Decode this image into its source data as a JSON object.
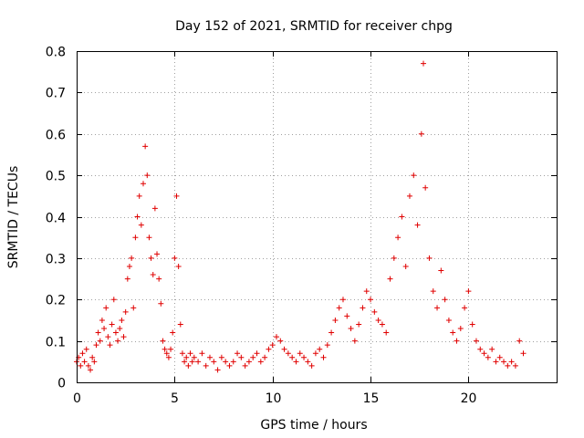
{
  "chart_data": {
    "type": "scatter",
    "title": "Day 152 of 2021, SRMTID for receiver chpg",
    "xlabel": "GPS time / hours",
    "ylabel": "SRMTID / TECUs",
    "xlim": [
      0,
      24.5
    ],
    "ylim": [
      0,
      0.8
    ],
    "xticks": [
      0,
      5,
      10,
      15,
      20
    ],
    "yticks": [
      0,
      0.1,
      0.2,
      0.3,
      0.4,
      0.5,
      0.6,
      0.7,
      0.8
    ],
    "grid": true,
    "marker": "plus",
    "color": "#e00000",
    "series": [
      {
        "name": "SRMTID",
        "x": [
          0.0,
          0.1,
          0.2,
          0.3,
          0.4,
          0.5,
          0.6,
          0.7,
          0.8,
          0.9,
          1.0,
          1.1,
          1.2,
          1.3,
          1.4,
          1.5,
          1.6,
          1.7,
          1.8,
          1.9,
          2.0,
          2.1,
          2.2,
          2.3,
          2.4,
          2.5,
          2.6,
          2.7,
          2.8,
          2.9,
          3.0,
          3.1,
          3.2,
          3.3,
          3.4,
          3.5,
          3.6,
          3.7,
          3.8,
          3.9,
          4.0,
          4.1,
          4.2,
          4.3,
          4.4,
          4.5,
          4.6,
          4.7,
          4.8,
          4.9,
          5.0,
          5.1,
          5.2,
          5.3,
          5.4,
          5.5,
          5.6,
          5.7,
          5.8,
          5.9,
          6.0,
          6.2,
          6.4,
          6.6,
          6.8,
          7.0,
          7.2,
          7.4,
          7.6,
          7.8,
          8.0,
          8.2,
          8.4,
          8.6,
          8.8,
          9.0,
          9.2,
          9.4,
          9.6,
          9.8,
          10.0,
          10.2,
          10.4,
          10.6,
          10.8,
          11.0,
          11.2,
          11.4,
          11.6,
          11.8,
          12.0,
          12.2,
          12.4,
          12.6,
          12.8,
          13.0,
          13.2,
          13.4,
          13.6,
          13.8,
          14.0,
          14.2,
          14.4,
          14.6,
          14.8,
          15.0,
          15.2,
          15.4,
          15.6,
          15.8,
          16.0,
          16.2,
          16.4,
          16.6,
          16.8,
          17.0,
          17.2,
          17.4,
          17.6,
          17.7,
          17.8,
          18.0,
          18.2,
          18.4,
          18.6,
          18.8,
          19.0,
          19.2,
          19.4,
          19.6,
          19.8,
          20.0,
          20.2,
          20.4,
          20.6,
          20.8,
          21.0,
          21.2,
          21.4,
          21.6,
          21.8,
          22.0,
          22.2,
          22.4,
          22.6,
          22.8
        ],
        "y": [
          0.05,
          0.06,
          0.04,
          0.07,
          0.05,
          0.08,
          0.04,
          0.03,
          0.06,
          0.05,
          0.09,
          0.12,
          0.1,
          0.15,
          0.13,
          0.18,
          0.11,
          0.09,
          0.14,
          0.2,
          0.12,
          0.1,
          0.13,
          0.15,
          0.11,
          0.17,
          0.25,
          0.28,
          0.3,
          0.18,
          0.35,
          0.4,
          0.45,
          0.38,
          0.48,
          0.57,
          0.5,
          0.35,
          0.3,
          0.26,
          0.42,
          0.31,
          0.25,
          0.19,
          0.1,
          0.08,
          0.07,
          0.06,
          0.08,
          0.12,
          0.3,
          0.45,
          0.28,
          0.14,
          0.07,
          0.05,
          0.06,
          0.04,
          0.07,
          0.05,
          0.06,
          0.05,
          0.07,
          0.04,
          0.06,
          0.05,
          0.03,
          0.06,
          0.05,
          0.04,
          0.05,
          0.07,
          0.06,
          0.04,
          0.05,
          0.06,
          0.07,
          0.05,
          0.06,
          0.08,
          0.09,
          0.11,
          0.1,
          0.08,
          0.07,
          0.06,
          0.05,
          0.07,
          0.06,
          0.05,
          0.04,
          0.07,
          0.08,
          0.06,
          0.09,
          0.12,
          0.15,
          0.18,
          0.2,
          0.16,
          0.13,
          0.1,
          0.14,
          0.18,
          0.22,
          0.2,
          0.17,
          0.15,
          0.14,
          0.12,
          0.25,
          0.3,
          0.35,
          0.4,
          0.28,
          0.45,
          0.5,
          0.38,
          0.6,
          0.77,
          0.47,
          0.3,
          0.22,
          0.18,
          0.27,
          0.2,
          0.15,
          0.12,
          0.1,
          0.13,
          0.18,
          0.22,
          0.14,
          0.1,
          0.08,
          0.07,
          0.06,
          0.08,
          0.05,
          0.06,
          0.05,
          0.04,
          0.05,
          0.04,
          0.1,
          0.07
        ]
      }
    ]
  }
}
